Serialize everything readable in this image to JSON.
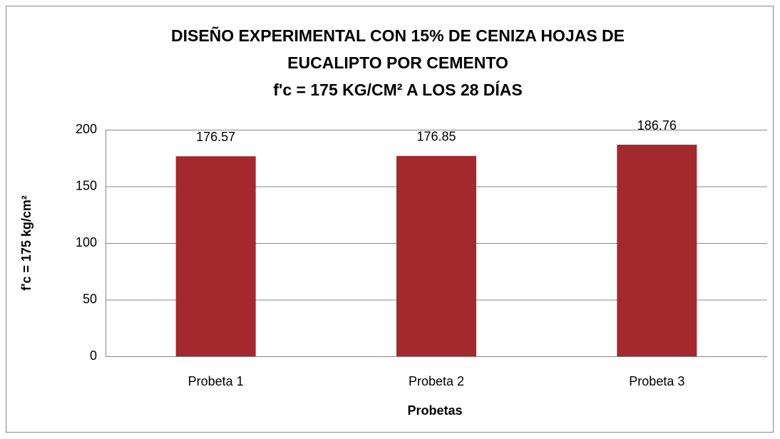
{
  "chart_data": {
    "type": "bar",
    "title": [
      "DISEÑO EXPERIMENTAL CON 15% DE CENIZA HOJAS DE",
      "EUCALIPTO POR CEMENTO",
      "f'c = 175 KG/CM² A LOS 28 DÍAS"
    ],
    "x_label": "Probetas",
    "y_label": "f'c = 175 kg/cm²",
    "categories": [
      "Probeta 1",
      "Probeta 2",
      "Probeta 3"
    ],
    "values": [
      176.57,
      176.85,
      186.76
    ],
    "color": "#a4292c",
    "ylim": [
      0,
      200
    ],
    "yticks": [
      0,
      50,
      100,
      150,
      200
    ],
    "grid": true
  }
}
